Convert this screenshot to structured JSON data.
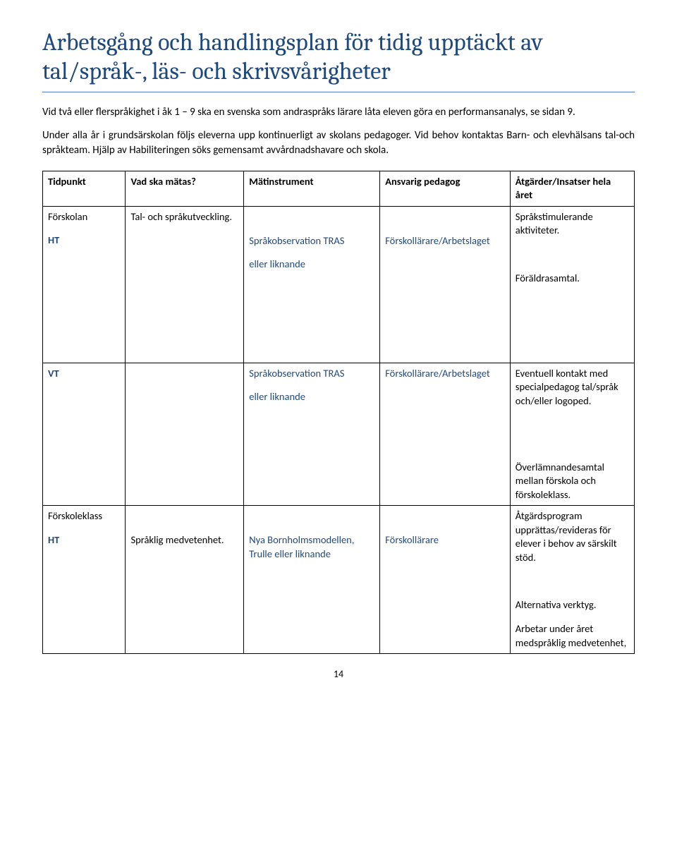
{
  "heading": "Arbetsgång och handlingsplan för tidig upptäckt av tal/språk-, läs- och skrivsvårigheter",
  "intro1": "Vid två eller flerspråkighet i åk 1 – 9 ska en svenska som andraspråks lärare låta eleven göra en performansanalys, se sidan 9.",
  "intro2": "Under alla år i grundsärskolan följs eleverna upp kontinuerligt av skolans pedagoger. Vid behov kontaktas Barn- och elevhälsans tal-och språkteam. Hjälp av Habiliteringen söks gemensamt avvårdnadshavare och skola.",
  "table": {
    "headers": {
      "h1": "Tidpunkt",
      "h2": "Vad ska mätas?",
      "h3": "Mätinstrument",
      "h4": "Ansvarig pedagog",
      "h5": "Åtgärder/Insatser hela året"
    },
    "r1": {
      "c1a": "Förskolan",
      "c1b": "HT",
      "c2": "Tal- och språkutveckling.",
      "c3a": "Språkobservation TRAS",
      "c3b": "eller liknande",
      "c4": "Förskollärare/Arbetslaget",
      "c5a": "Språkstimulerande aktiviteter.",
      "c5b": "Föräldrasamtal."
    },
    "r2": {
      "c1": "VT",
      "c3a": "Språkobservation TRAS",
      "c3b": "eller liknande",
      "c4": "Förskollärare/Arbetslaget",
      "c5a": "Eventuell kontakt med specialpedagog tal/språk och/eller logoped.",
      "c5b": "Överlämnandesamtal mellan förskola och förskoleklass."
    },
    "r3": {
      "c1a": "Förskoleklass",
      "c1b": "HT",
      "c2": "Språklig medvetenhet.",
      "c3": "Nya Bornholmsmodellen, Trulle eller liknande",
      "c4": "Förskollärare",
      "c5a": "Åtgärdsprogram upprättas/revideras för elever i behov av särskilt stöd.",
      "c5b": "Alternativa verktyg.",
      "c5c": "Arbetar under året medspråklig medvetenhet,"
    }
  },
  "pageNumber": "14"
}
